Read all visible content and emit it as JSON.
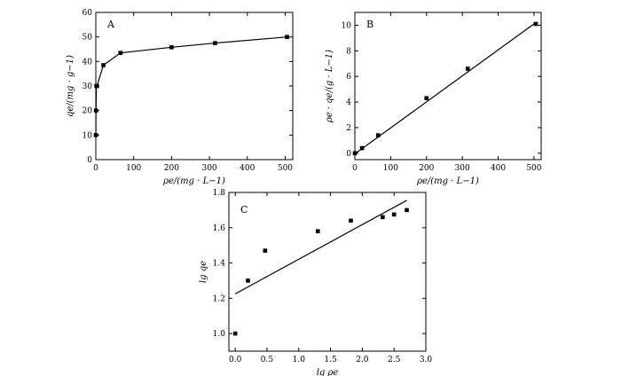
{
  "chart_data": [
    {
      "type": "line",
      "panel_label": "A",
      "xlabel": "ρe/(mg · L−1)",
      "ylabel": "qe/(mg · g−1)",
      "xlim": [
        0,
        520
      ],
      "ylim": [
        0,
        60
      ],
      "xticks": [
        0,
        100,
        200,
        300,
        400,
        500
      ],
      "yticks": [
        0,
        10,
        20,
        30,
        40,
        50,
        60
      ],
      "grid": false,
      "series": [
        {
          "x": [
            0,
            0.5,
            1.5,
            3,
            20,
            65,
            200,
            315,
            505
          ],
          "y": [
            10,
            20,
            30,
            30,
            38.5,
            43.5,
            45.8,
            47.5,
            50
          ],
          "marker": "square",
          "line": "connected"
        }
      ]
    },
    {
      "type": "scatter",
      "panel_label": "B",
      "xlabel": "ρe/(mg · L−1)",
      "ylabel": "ρe · qe/(g · L−1)",
      "xlim": [
        0,
        520
      ],
      "ylim": [
        -0.5,
        11
      ],
      "xticks": [
        0,
        100,
        200,
        300,
        400,
        500
      ],
      "yticks": [
        0,
        2,
        4,
        6,
        8,
        10
      ],
      "grid": false,
      "series": [
        {
          "x": [
            0,
            20,
            65,
            200,
            315,
            505
          ],
          "y": [
            0,
            0.4,
            1.4,
            4.3,
            6.6,
            10.1
          ],
          "marker": "square"
        }
      ],
      "fit_line": {
        "x": [
          0,
          505
        ],
        "y": [
          -0.05,
          10.2
        ]
      }
    },
    {
      "type": "scatter",
      "panel_label": "C",
      "xlabel": "lg ρe",
      "ylabel": "lg qe",
      "xlim": [
        -0.1,
        3.0
      ],
      "ylim": [
        0.9,
        1.8
      ],
      "xticks": [
        0.0,
        0.5,
        1.0,
        1.5,
        2.0,
        2.5,
        3.0
      ],
      "yticks": [
        1.0,
        1.2,
        1.4,
        1.6,
        1.8
      ],
      "grid": false,
      "series": [
        {
          "x": [
            0.0,
            0.2,
            0.47,
            1.3,
            1.82,
            2.32,
            2.5,
            2.7
          ],
          "y": [
            1.0,
            1.3,
            1.47,
            1.58,
            1.64,
            1.66,
            1.675,
            1.7
          ],
          "marker": "square"
        }
      ],
      "fit_line": {
        "x": [
          0.0,
          2.7
        ],
        "y": [
          1.225,
          1.755
        ]
      }
    }
  ]
}
